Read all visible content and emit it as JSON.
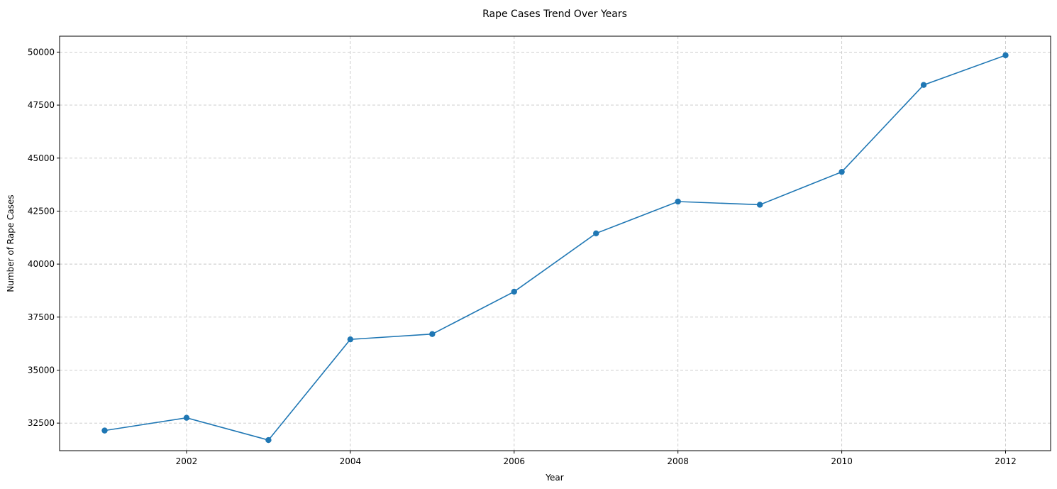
{
  "chart_data": {
    "type": "line",
    "title": "Rape Cases Trend Over Years",
    "xlabel": "Year",
    "ylabel": "Number of Rape Cases",
    "x": [
      2001,
      2002,
      2003,
      2004,
      2005,
      2006,
      2007,
      2008,
      2009,
      2010,
      2011,
      2012
    ],
    "series": [
      {
        "name": "Rape Cases",
        "values": [
          32150,
          32750,
          31700,
          36450,
          36700,
          38700,
          41450,
          42950,
          42800,
          44350,
          48450,
          49850
        ]
      }
    ],
    "xlim": [
      2000.45,
      2012.55
    ],
    "ylim": [
      31200,
      50750
    ],
    "xticks": [
      2002,
      2004,
      2006,
      2008,
      2010,
      2012
    ],
    "yticks": [
      32500,
      35000,
      37500,
      40000,
      42500,
      45000,
      47500,
      50000
    ],
    "grid": true,
    "line_color": "#1f77b4",
    "marker": "circle"
  }
}
